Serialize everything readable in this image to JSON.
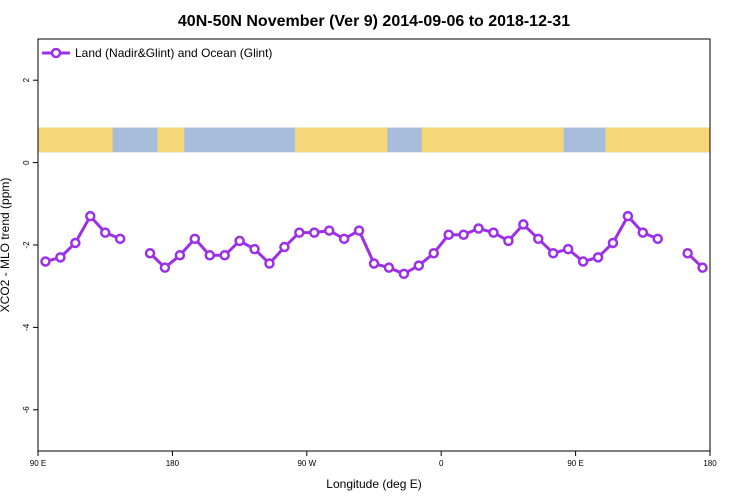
{
  "chart_data": {
    "type": "line",
    "title": "40N-50N November (Ver 9)   2014-09-06 to 2018-12-31",
    "xlabel": "Longitude (deg E)",
    "ylabel": "XCO2 - MLO trend (ppm)",
    "xlim": [
      90,
      450
    ],
    "ylim": [
      -7,
      3
    ],
    "x_ticks": [
      {
        "value": 90,
        "label": "90 E"
      },
      {
        "value": 180,
        "label": "180"
      },
      {
        "value": 270,
        "label": "90 W"
      },
      {
        "value": 360,
        "label": "0"
      },
      {
        "value": 450,
        "label": "90 E"
      },
      {
        "value": 540,
        "label": "180"
      }
    ],
    "y_ticks": [
      {
        "value": 2,
        "label": "2"
      },
      {
        "value": 0,
        "label": "0"
      },
      {
        "value": -2,
        "label": "-2"
      },
      {
        "value": -4,
        "label": "-4"
      },
      {
        "value": -6,
        "label": "-6"
      }
    ],
    "legend": {
      "position": "top-left"
    },
    "map_colors": {
      "land": "#f5d77a",
      "ocean": "#a8bcdc"
    },
    "series": [
      {
        "name": "Land (Nadir&Glint) and Ocean (Glint)",
        "color": "#9b30e6",
        "points": [
          {
            "x": 95,
            "y": -2.4
          },
          {
            "x": 105,
            "y": -2.3
          },
          {
            "x": 115,
            "y": -1.95
          },
          {
            "x": 125,
            "y": -1.3
          },
          {
            "x": 135,
            "y": -1.7
          },
          {
            "x": 145,
            "y": -1.85
          },
          null,
          {
            "x": 165,
            "y": -2.2
          },
          {
            "x": 175,
            "y": -2.55
          },
          {
            "x": 185,
            "y": -2.25
          },
          {
            "x": 195,
            "y": -1.85
          },
          {
            "x": 205,
            "y": -2.25
          },
          {
            "x": 215,
            "y": -2.25
          },
          {
            "x": 225,
            "y": -1.9
          },
          {
            "x": 235,
            "y": -2.1
          },
          {
            "x": 245,
            "y": -2.45
          },
          {
            "x": 255,
            "y": -2.05
          },
          {
            "x": 265,
            "y": -1.7
          },
          {
            "x": 275,
            "y": -1.7
          },
          {
            "x": 285,
            "y": -1.65
          },
          {
            "x": 295,
            "y": -1.85
          },
          {
            "x": 305,
            "y": -1.65
          },
          {
            "x": 315,
            "y": -2.45
          },
          {
            "x": 325,
            "y": -2.55
          },
          {
            "x": 335,
            "y": -2.7
          },
          {
            "x": 345,
            "y": -2.5
          },
          {
            "x": 355,
            "y": -2.2
          },
          {
            "x": 365,
            "y": -1.75
          },
          {
            "x": 375,
            "y": -1.75
          },
          {
            "x": 385,
            "y": -1.6
          },
          {
            "x": 395,
            "y": -1.7
          },
          {
            "x": 405,
            "y": -1.9
          },
          {
            "x": 415,
            "y": -1.5
          },
          {
            "x": 425,
            "y": -1.85
          },
          {
            "x": 435,
            "y": -2.2
          },
          {
            "x": 445,
            "y": -2.1
          },
          {
            "x": 455,
            "y": -2.4
          },
          {
            "x": 465,
            "y": -2.3
          },
          {
            "x": 475,
            "y": -1.95
          },
          {
            "x": 485,
            "y": -1.3
          },
          {
            "x": 495,
            "y": -1.7
          },
          {
            "x": 505,
            "y": -1.85
          },
          null,
          {
            "x": 525,
            "y": -2.2
          },
          {
            "x": 535,
            "y": -2.55
          }
        ]
      }
    ]
  }
}
